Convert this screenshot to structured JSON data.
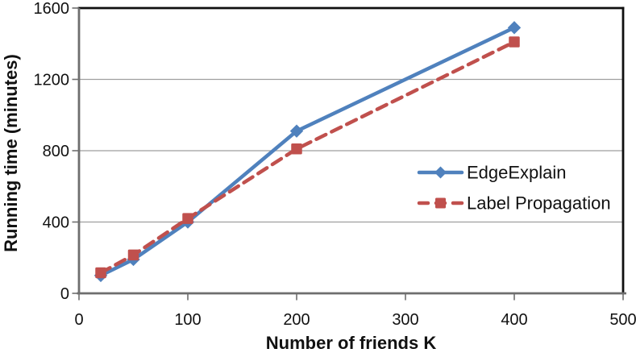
{
  "chart_data": {
    "type": "line",
    "x": [
      20,
      50,
      100,
      200,
      400
    ],
    "series": [
      {
        "name": "EdgeExplain",
        "color": "#4F81BD",
        "line_style": "solid",
        "marker": "diamond",
        "values": [
          100,
          190,
          400,
          910,
          1490
        ]
      },
      {
        "name": "Label Propagation",
        "color": "#C0504D",
        "line_style": "dashed",
        "marker": "square",
        "values": [
          115,
          215,
          420,
          810,
          1410
        ]
      }
    ],
    "title": "",
    "xlabel": "Number of friends K",
    "ylabel": "Running time (minutes)",
    "xlim": [
      0,
      500
    ],
    "ylim": [
      0,
      1600
    ],
    "x_ticks": [
      "0",
      "100",
      "200",
      "300",
      "400",
      "500"
    ],
    "y_ticks": [
      "0",
      "400",
      "800",
      "1200",
      "1600"
    ],
    "grid": "horizontal-only",
    "legend_position": "inside-middle-right",
    "colors": {
      "axis": "#6e6e6e",
      "gridline": "#9e9e9e",
      "plot_border": "#0f0f0f",
      "text": "#111111",
      "background": "#ffffff"
    }
  }
}
